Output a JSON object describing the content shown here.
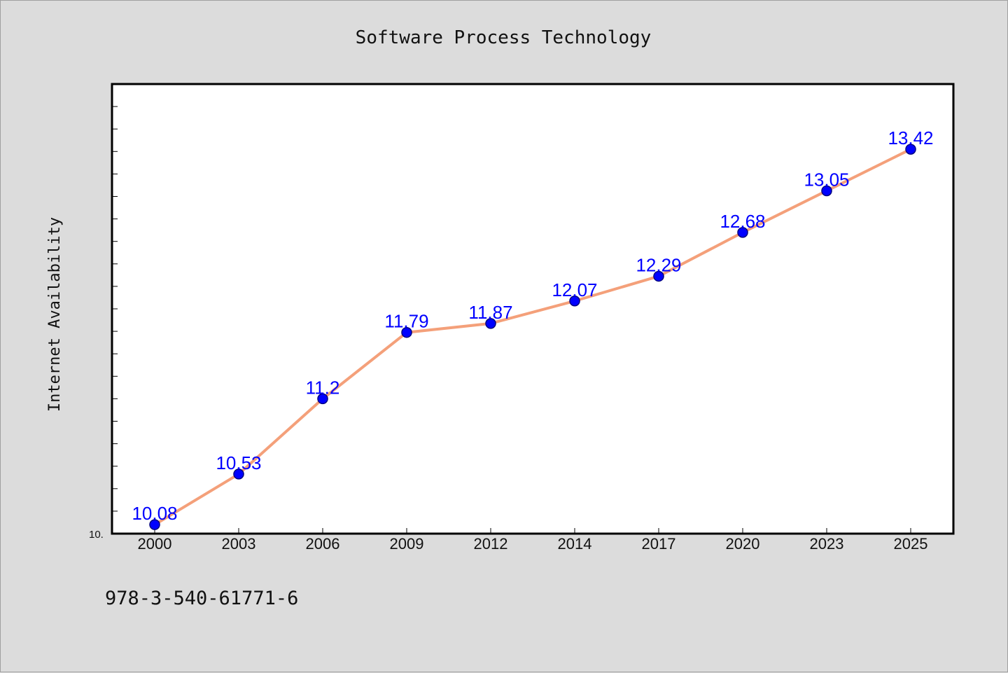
{
  "chart_data": {
    "type": "line",
    "title": "Software Process Technology",
    "xlabel": "",
    "ylabel": "Internet Availability",
    "categories": [
      "2000",
      "2003",
      "2006",
      "2009",
      "2012",
      "2014",
      "2017",
      "2020",
      "2023",
      "2025"
    ],
    "series": [
      {
        "values": [
          10.08,
          10.53,
          11.2,
          11.79,
          11.87,
          12.07,
          12.29,
          12.68,
          13.05,
          13.42
        ]
      }
    ],
    "data_labels": [
      "10.08",
      "10.53",
      "11.2",
      "11.79",
      "11.87",
      "12.07",
      "12.29",
      "12.68",
      "13.05",
      "13.42"
    ],
    "yticks_labeled": [
      "10."
    ],
    "ylim": [
      10.0,
      14.0
    ],
    "grid": false,
    "colors": {
      "line": "#f4a07a",
      "marker": "#0000ff",
      "marker_edge": "#000080",
      "data_label": "#0000ff",
      "background": "#dcdcdc",
      "plot_area": "#ffffff"
    }
  },
  "footer": {
    "text": "978-3-540-61771-6"
  }
}
